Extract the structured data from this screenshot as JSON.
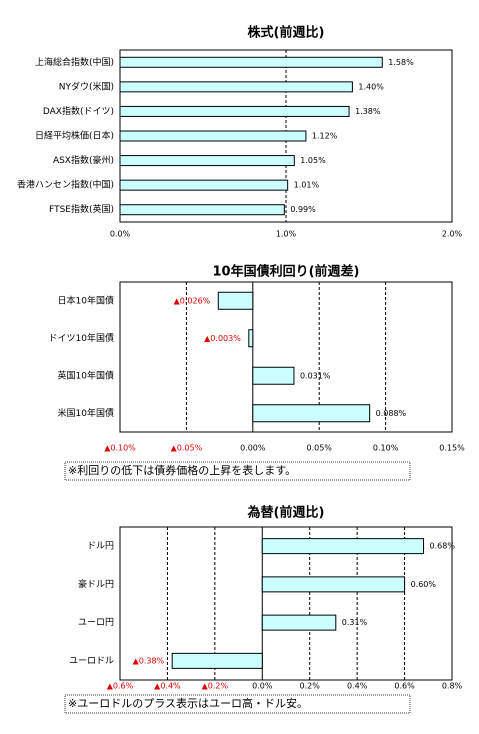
{
  "chart_data": [
    {
      "type": "bar",
      "orientation": "horizontal",
      "title": "株式(前週比)",
      "categories": [
        "上海総合指数(中国)",
        "NYダウ(米国)",
        "DAX指数(ドイツ)",
        "日経平均株価(日本)",
        "ASX指数(豪州)",
        "香港ハンセン指数(中国)",
        "FTSE指数(英国)"
      ],
      "values": [
        1.58,
        1.4,
        1.38,
        1.12,
        1.05,
        1.01,
        0.99
      ],
      "value_labels": [
        "1.58%",
        "1.40%",
        "1.38%",
        "1.12%",
        "1.05%",
        "1.01%",
        "0.99%"
      ],
      "xlim": [
        0,
        2.0
      ],
      "xticks": [
        {
          "value": 0,
          "label": "0.0%"
        },
        {
          "value": 1.0,
          "label": "1.0%"
        },
        {
          "value": 2.0,
          "label": "2.0%"
        }
      ],
      "color": "#ccffff",
      "grid": true
    },
    {
      "type": "bar",
      "orientation": "horizontal",
      "title": "10年国債利回り(前週差)",
      "categories": [
        "日本10年国債",
        "ドイツ10年国債",
        "英国10年国債",
        "米国10年国債"
      ],
      "values": [
        -0.026,
        -0.003,
        0.031,
        0.088
      ],
      "value_labels": [
        "▲0.026%",
        "▲0.003%",
        "0.031%",
        "0.088%"
      ],
      "xlim": [
        -0.1,
        0.15
      ],
      "xticks": [
        {
          "value": -0.1,
          "label": "▲0.10%"
        },
        {
          "value": -0.05,
          "label": "▲0.05%"
        },
        {
          "value": 0,
          "label": "0.00%"
        },
        {
          "value": 0.05,
          "label": "0.05%"
        },
        {
          "value": 0.1,
          "label": "0.10%"
        },
        {
          "value": 0.15,
          "label": "0.15%"
        }
      ],
      "color": "#ccffff",
      "grid": true,
      "note": "※利回りの低下は債券価格の上昇を表します。"
    },
    {
      "type": "bar",
      "orientation": "horizontal",
      "title": "為替(前週比)",
      "categories": [
        "ドル円",
        "豪ドル円",
        "ユーロ円",
        "ユーロドル"
      ],
      "values": [
        0.68,
        0.6,
        0.31,
        -0.38
      ],
      "value_labels": [
        "0.68%",
        "0.60%",
        "0.31%",
        "▲0.38%"
      ],
      "xlim": [
        -0.6,
        0.8
      ],
      "xticks": [
        {
          "value": -0.6,
          "label": "▲0.6%"
        },
        {
          "value": -0.4,
          "label": "▲0.4%"
        },
        {
          "value": -0.2,
          "label": "▲0.2%"
        },
        {
          "value": 0,
          "label": "0.0%"
        },
        {
          "value": 0.2,
          "label": "0.2%"
        },
        {
          "value": 0.4,
          "label": "0.4%"
        },
        {
          "value": 0.6,
          "label": "0.6%"
        },
        {
          "value": 0.8,
          "label": "0.8%"
        }
      ],
      "color": "#ccffff",
      "grid": true,
      "note": "※ユーロドルのプラス表示はユーロ高・ドル安。"
    }
  ]
}
